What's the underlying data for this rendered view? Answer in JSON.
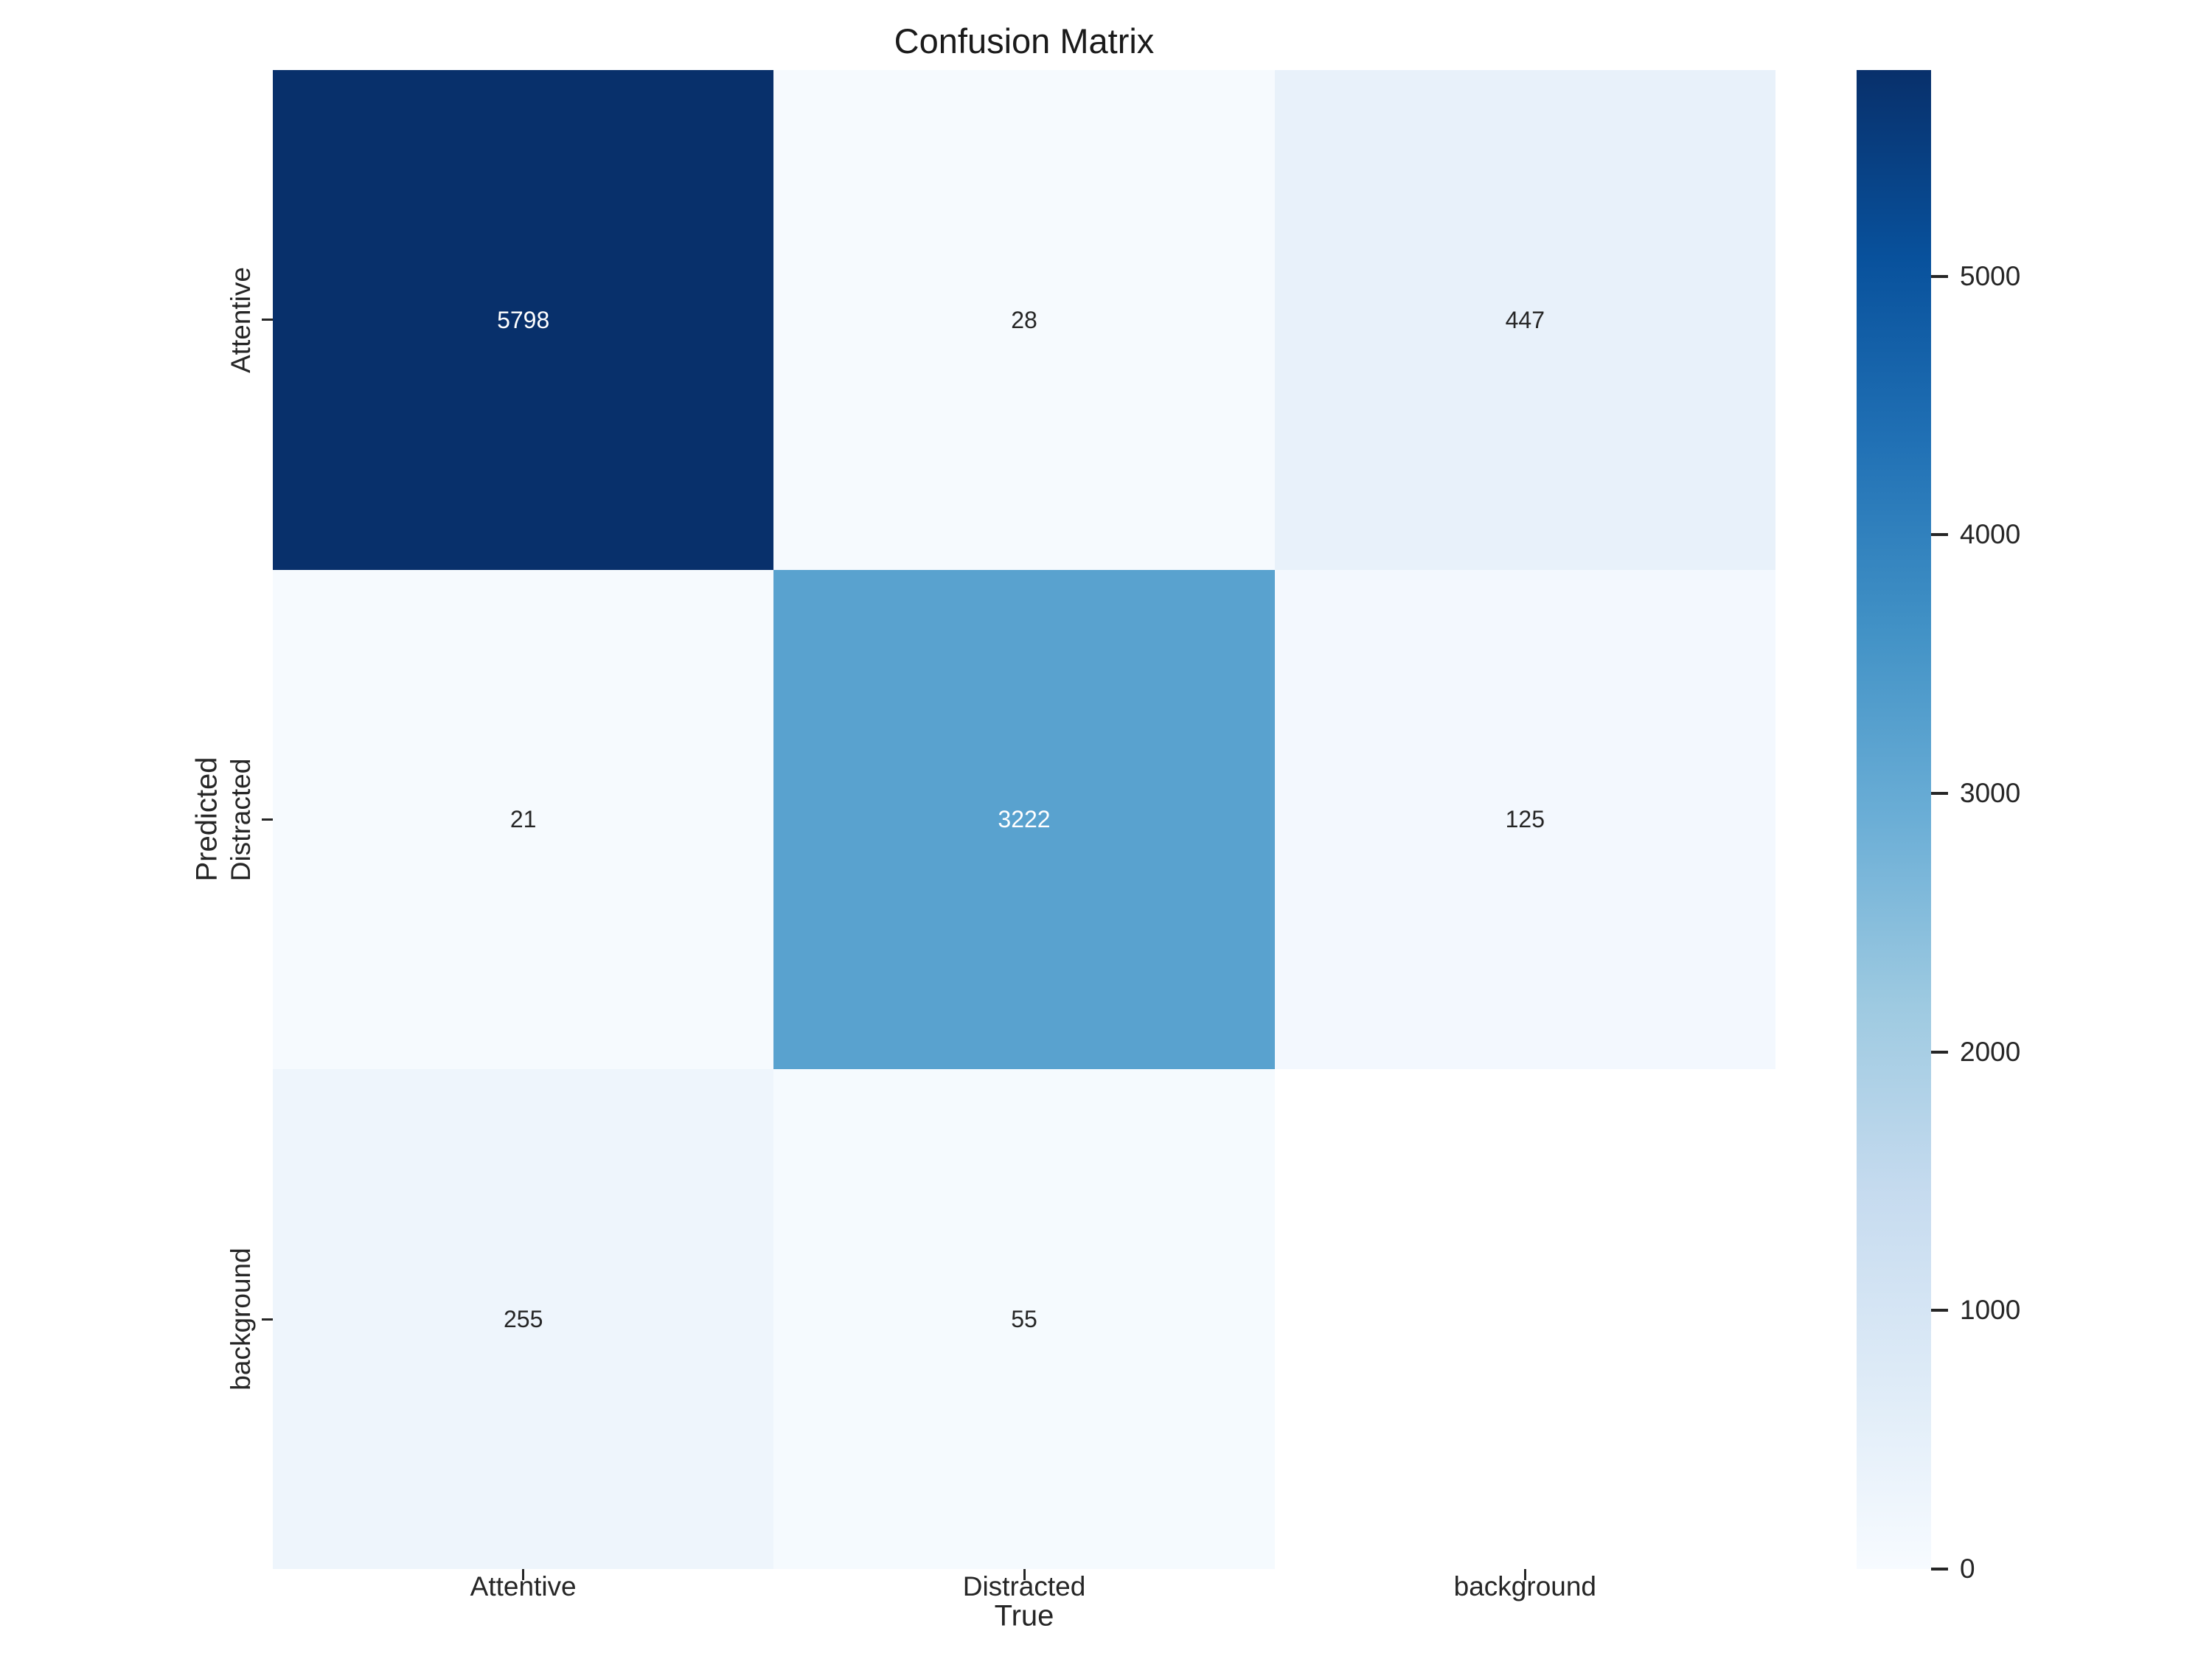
{
  "chart_data": {
    "type": "heatmap",
    "title": "Confusion Matrix",
    "xlabel": "True",
    "ylabel": "Predicted",
    "x_categories": [
      "Attentive",
      "Distracted",
      "background"
    ],
    "y_categories": [
      "Attentive",
      "Distracted",
      "background"
    ],
    "matrix": [
      [
        5798,
        28,
        447
      ],
      [
        21,
        3222,
        125
      ],
      [
        255,
        55,
        null
      ]
    ],
    "cell_colors": [
      [
        "#08306b",
        "#f6fafe",
        "#e8f1fa"
      ],
      [
        "#f6fafe",
        "#59a2cf",
        "#f3f8fe"
      ],
      [
        "#eef5fc",
        "#f5fafe",
        "#ffffff"
      ]
    ],
    "cell_text_colors": [
      [
        "#ffffff",
        "#262626",
        "#262626"
      ],
      [
        "#262626",
        "#ffffff",
        "#262626"
      ],
      [
        "#262626",
        "#262626",
        "#262626"
      ]
    ],
    "colormap": "Blues",
    "grid": false,
    "legend_position": "right-colorbar",
    "colorbar": {
      "vmin": 0,
      "vmax": 5798,
      "ticks": [
        0,
        1000,
        2000,
        3000,
        4000,
        5000
      ],
      "gradient_top_to_bottom": [
        "#08306b",
        "#08519c",
        "#2171b5",
        "#4292c6",
        "#6baed6",
        "#9ecae1",
        "#c6dbef",
        "#deebf7",
        "#f7fbff"
      ]
    }
  }
}
